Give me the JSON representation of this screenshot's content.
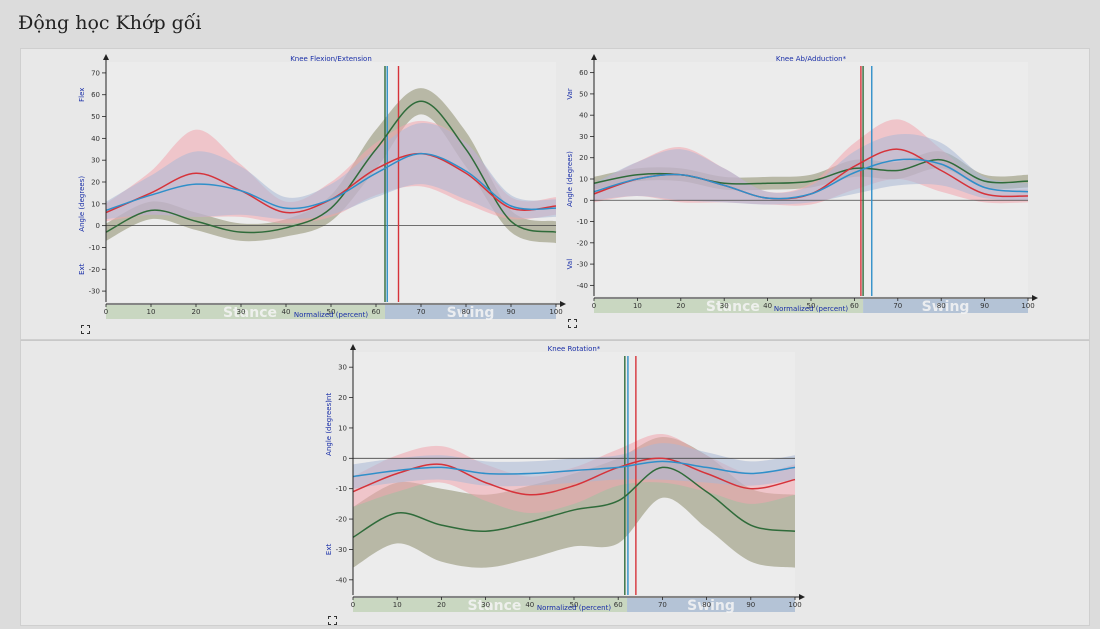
{
  "page": {
    "title": "Động học Khớp gối"
  },
  "colors": {
    "red": "#d6333a",
    "blue": "#2f8fc9",
    "green": "#2f6b3a",
    "band_red": "#f2a6ae",
    "band_blue": "#a9b8d6",
    "band_green": "#a7a78f",
    "stance_bg": "#c9d7c1",
    "swing_bg": "#b4c3d6"
  },
  "icons": {
    "expand": "expand-icon"
  },
  "chart_data": [
    {
      "id": "flexion",
      "type": "line",
      "title": "Knee Flexion/Extension",
      "xlabel": "Normalized (percent)",
      "ylabel": "Angle (degrees)",
      "ylabel_pos": "Flex",
      "ylabel_neg": "Ext",
      "xlim": [
        0,
        100
      ],
      "ylim": [
        -35,
        75
      ],
      "xticks": [
        0,
        10,
        20,
        30,
        40,
        50,
        60,
        70,
        80,
        90,
        100
      ],
      "yticks": [
        -30,
        -20,
        -10,
        0,
        10,
        20,
        30,
        40,
        50,
        60,
        70
      ],
      "phase_labels": [
        "Stance",
        "Swing"
      ],
      "stance_end": 62,
      "vlines": [
        {
          "x": 62,
          "color": "green"
        },
        {
          "x": 62.5,
          "color": "blue"
        },
        {
          "x": 65,
          "color": "red"
        }
      ],
      "x": [
        0,
        10,
        20,
        30,
        40,
        50,
        60,
        70,
        80,
        90,
        100
      ],
      "series": [
        {
          "color": "red",
          "values": [
            6,
            15,
            24,
            16,
            6,
            12,
            26,
            33,
            24,
            8,
            9
          ],
          "band": [
            4,
            10,
            20,
            12,
            5,
            8,
            12,
            15,
            14,
            5,
            4
          ]
        },
        {
          "color": "blue",
          "values": [
            7,
            14,
            19,
            16,
            8,
            12,
            24,
            33,
            25,
            9,
            8
          ],
          "band": [
            4,
            9,
            15,
            11,
            5,
            7,
            11,
            14,
            13,
            5,
            4
          ]
        },
        {
          "color": "green",
          "values": [
            -3,
            7,
            2,
            -3,
            -1,
            8,
            35,
            57,
            35,
            2,
            -3
          ],
          "band": [
            4,
            4,
            4,
            4,
            4,
            6,
            9,
            6,
            8,
            5,
            5
          ]
        }
      ]
    },
    {
      "id": "abduction",
      "type": "line",
      "title": "Knee Ab/Adduction*",
      "xlabel": "Normalized (percent)",
      "ylabel": "Angle (degrees)",
      "ylabel_pos": "Var",
      "ylabel_neg": "Val",
      "xlim": [
        0,
        100
      ],
      "ylim": [
        -45,
        65
      ],
      "xticks": [
        0,
        10,
        20,
        30,
        40,
        50,
        60,
        70,
        80,
        90,
        100
      ],
      "yticks": [
        -40,
        -30,
        -20,
        -10,
        0,
        10,
        20,
        30,
        40,
        50,
        60
      ],
      "phase_labels": [
        "Stance",
        "Swing"
      ],
      "stance_end": 62,
      "vlines": [
        {
          "x": 61.5,
          "color": "red"
        },
        {
          "x": 62,
          "color": "green"
        },
        {
          "x": 64,
          "color": "blue"
        }
      ],
      "x": [
        0,
        10,
        20,
        30,
        40,
        50,
        60,
        70,
        80,
        90,
        100
      ],
      "series": [
        {
          "color": "red",
          "values": [
            3,
            10,
            12,
            7,
            1,
            3,
            16,
            24,
            14,
            3,
            2
          ],
          "band": [
            4,
            8,
            13,
            8,
            3,
            5,
            11,
            14,
            10,
            4,
            3
          ]
        },
        {
          "color": "blue",
          "values": [
            4,
            10,
            12,
            7,
            1,
            3,
            13,
            19,
            17,
            6,
            4
          ],
          "band": [
            4,
            8,
            12,
            8,
            3,
            4,
            10,
            12,
            10,
            5,
            4
          ]
        },
        {
          "color": "green",
          "values": [
            8,
            12,
            12,
            8,
            8,
            9,
            15,
            14,
            19,
            9,
            9
          ],
          "band": [
            3,
            3,
            3,
            3,
            3,
            3,
            4,
            4,
            4,
            3,
            3
          ]
        }
      ]
    },
    {
      "id": "rotation",
      "type": "line",
      "title": "Knee Rotation*",
      "xlabel": "Normalized (percent)",
      "ylabel": "Angle (degrees)",
      "ylabel_pos": "Int",
      "ylabel_neg": "Ext",
      "xlim": [
        0,
        100
      ],
      "ylim": [
        -45,
        35
      ],
      "xticks": [
        0,
        10,
        20,
        30,
        40,
        50,
        60,
        70,
        80,
        90,
        100
      ],
      "yticks": [
        -40,
        -30,
        -20,
        -10,
        0,
        10,
        20,
        30
      ],
      "phase_labels": [
        "Stance",
        "Swing"
      ],
      "stance_end": 62,
      "vlines": [
        {
          "x": 61.5,
          "color": "green"
        },
        {
          "x": 62.2,
          "color": "blue"
        },
        {
          "x": 64,
          "color": "red"
        }
      ],
      "x": [
        0,
        10,
        20,
        30,
        40,
        50,
        60,
        70,
        80,
        90,
        100
      ],
      "series": [
        {
          "color": "red",
          "values": [
            -11,
            -5,
            -2,
            -8,
            -12,
            -9,
            -3,
            0,
            -5,
            -10,
            -7
          ],
          "band": [
            5,
            6,
            6,
            6,
            6,
            6,
            6,
            8,
            6,
            5,
            5
          ]
        },
        {
          "color": "blue",
          "values": [
            -6,
            -4,
            -3,
            -5,
            -5,
            -4,
            -3,
            -1,
            -3,
            -5,
            -3
          ],
          "band": [
            4,
            4,
            4,
            4,
            4,
            4,
            4,
            6,
            5,
            4,
            4
          ]
        },
        {
          "color": "green",
          "values": [
            -26,
            -18,
            -22,
            -24,
            -21,
            -17,
            -14,
            -3,
            -11,
            -22,
            -24
          ],
          "band": [
            10,
            10,
            12,
            12,
            12,
            12,
            14,
            10,
            12,
            12,
            12
          ]
        }
      ]
    }
  ]
}
